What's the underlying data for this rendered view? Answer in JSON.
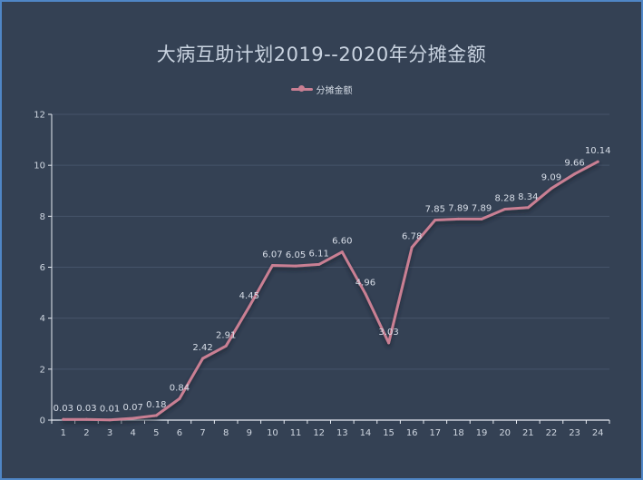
{
  "chart_data": {
    "type": "line",
    "title": "大病互助计划2019--2020年分摊金额",
    "legend": [
      "分摊金额"
    ],
    "legend_position": "top-center",
    "categories": [
      "1",
      "2",
      "3",
      "4",
      "5",
      "6",
      "7",
      "8",
      "9",
      "10",
      "11",
      "12",
      "13",
      "14",
      "15",
      "16",
      "17",
      "18",
      "19",
      "20",
      "21",
      "22",
      "23",
      "24"
    ],
    "series": [
      {
        "name": "分摊金额",
        "values": [
          0.03,
          0.03,
          0.01,
          0.07,
          0.18,
          0.84,
          2.42,
          2.91,
          4.45,
          6.07,
          6.05,
          6.11,
          6.6,
          4.96,
          3.03,
          6.78,
          7.85,
          7.89,
          7.89,
          8.28,
          8.34,
          9.09,
          9.66,
          10.14
        ],
        "labels": [
          "0.03",
          "0.03",
          "0.01",
          "0.07",
          "0.18",
          "0.84",
          "2.42",
          "2.91",
          "4.45",
          "6.07",
          "6.05",
          "6.11",
          "6.60",
          "4.96",
          "3.03",
          "6.78",
          "7.85",
          "7.89",
          "7.89",
          "8.28",
          "8.34",
          "9.09",
          "9.66",
          "10.14"
        ]
      }
    ],
    "ylim": [
      0,
      12
    ],
    "yticks": [
      "0",
      "2",
      "4",
      "6",
      "8",
      "10",
      "12"
    ],
    "grid": true,
    "colors": {
      "background": "#344154",
      "line": "#c97f93",
      "grid": "#46546a",
      "axis": "#e6ebf2",
      "text": "#cfd6e0",
      "border": "#4f86c6"
    }
  }
}
